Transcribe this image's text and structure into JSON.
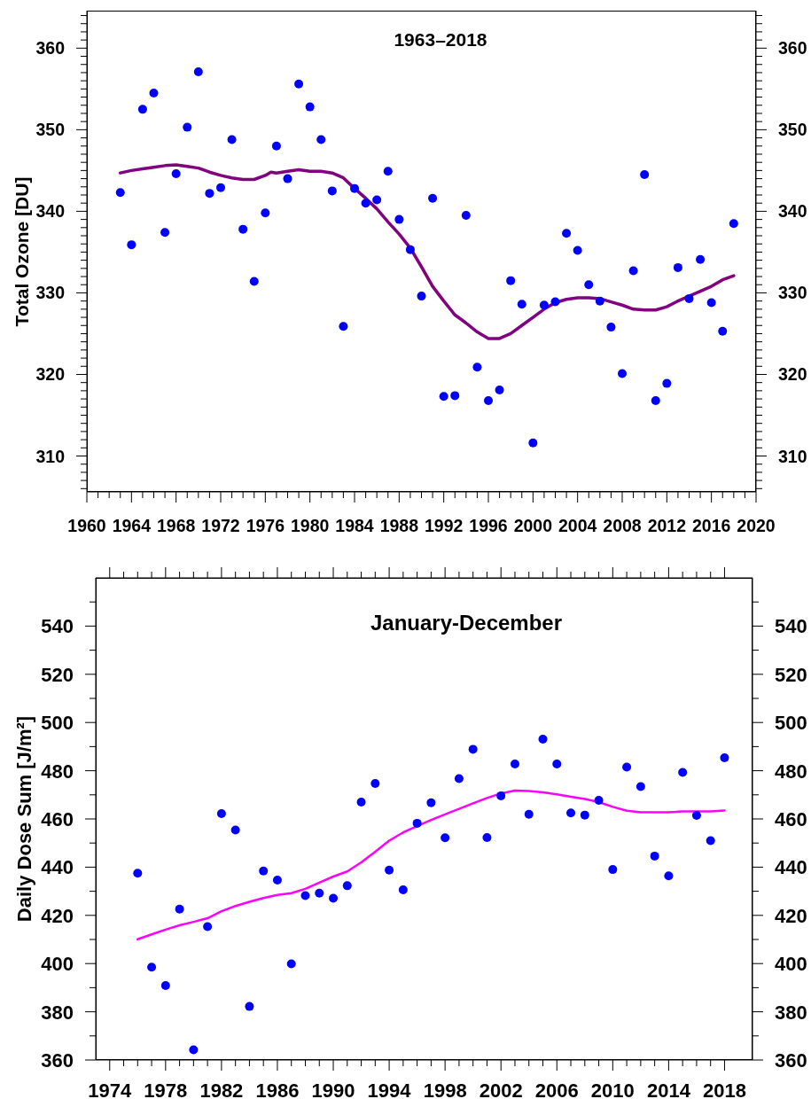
{
  "chart_data": [
    {
      "type": "scatter",
      "title": "1963–2018",
      "ylabel": "Total Ozone [DU]",
      "xlim": [
        1960,
        2020
      ],
      "xticks": [
        1960,
        {
          "value": 1961,
          "label": null
        },
        {
          "value": 1962,
          "label": null
        },
        {
          "value": 1963,
          "label": null
        },
        1964,
        {
          "value": 1965,
          "label": null
        },
        {
          "value": 1966,
          "label": null
        },
        {
          "value": 1967,
          "label": null
        },
        1968,
        {
          "value": 1969,
          "label": null
        },
        {
          "value": 1970,
          "label": null
        },
        {
          "value": 1971,
          "label": null
        },
        1972,
        {
          "value": 1973,
          "label": null
        },
        {
          "value": 1974,
          "label": null
        },
        {
          "value": 1975,
          "label": null
        },
        1976,
        {
          "value": 1977,
          "label": null
        },
        {
          "value": 1978,
          "label": null
        },
        {
          "value": 1979,
          "label": null
        },
        1980,
        {
          "value": 1981,
          "label": null
        },
        {
          "value": 1982,
          "label": null
        },
        {
          "value": 1983,
          "label": null
        },
        1984,
        {
          "value": 1985,
          "label": null
        },
        {
          "value": 1986,
          "label": null
        },
        {
          "value": 1987,
          "label": null
        },
        1988,
        {
          "value": 1989,
          "label": null
        },
        {
          "value": 1990,
          "label": null
        },
        {
          "value": 1991,
          "label": null
        },
        1992,
        {
          "value": 1993,
          "label": null
        },
        {
          "value": 1994,
          "label": null
        },
        {
          "value": 1995,
          "label": null
        },
        1996,
        {
          "value": 1997,
          "label": null
        },
        {
          "value": 1998,
          "label": null
        },
        {
          "value": 1999,
          "label": null
        },
        2000,
        {
          "value": 2001,
          "label": null
        },
        {
          "value": 2002,
          "label": null
        },
        {
          "value": 2003,
          "label": null
        },
        2004,
        {
          "value": 2005,
          "label": null
        },
        {
          "value": 2006,
          "label": null
        },
        {
          "value": 2007,
          "label": null
        },
        2008,
        {
          "value": 2009,
          "label": null
        },
        {
          "value": 2010,
          "label": null
        },
        {
          "value": 2011,
          "label": null
        },
        2012,
        {
          "value": 2013,
          "label": null
        },
        {
          "value": 2014,
          "label": null
        },
        {
          "value": 2015,
          "label": null
        },
        2016,
        {
          "value": 2017,
          "label": null
        },
        {
          "value": 2018,
          "label": null
        },
        {
          "value": 2019,
          "label": null
        },
        2020
      ],
      "ylim": [
        305.6,
        364.6
      ],
      "yticks": [
        {
          "value": 306,
          "label": null
        },
        {
          "value": 307,
          "label": null
        },
        {
          "value": 308,
          "label": null
        },
        {
          "value": 309,
          "label": null
        },
        310,
        {
          "value": 311,
          "label": null
        },
        {
          "value": 312,
          "label": null
        },
        {
          "value": 313,
          "label": null
        },
        {
          "value": 314,
          "label": null
        },
        {
          "value": 315,
          "label": null
        },
        {
          "value": 316,
          "label": null
        },
        {
          "value": 317,
          "label": null
        },
        {
          "value": 318,
          "label": null
        },
        {
          "value": 319,
          "label": null
        },
        320,
        {
          "value": 321,
          "label": null
        },
        {
          "value": 322,
          "label": null
        },
        {
          "value": 323,
          "label": null
        },
        {
          "value": 324,
          "label": null
        },
        {
          "value": 325,
          "label": null
        },
        {
          "value": 326,
          "label": null
        },
        {
          "value": 327,
          "label": null
        },
        {
          "value": 328,
          "label": null
        },
        {
          "value": 329,
          "label": null
        },
        330,
        {
          "value": 331,
          "label": null
        },
        {
          "value": 332,
          "label": null
        },
        {
          "value": 333,
          "label": null
        },
        {
          "value": 334,
          "label": null
        },
        {
          "value": 335,
          "label": null
        },
        {
          "value": 336,
          "label": null
        },
        {
          "value": 337,
          "label": null
        },
        {
          "value": 338,
          "label": null
        },
        {
          "value": 339,
          "label": null
        },
        340,
        {
          "value": 341,
          "label": null
        },
        {
          "value": 342,
          "label": null
        },
        {
          "value": 343,
          "label": null
        },
        {
          "value": 344,
          "label": null
        },
        {
          "value": 345,
          "label": null
        },
        {
          "value": 346,
          "label": null
        },
        {
          "value": 347,
          "label": null
        },
        {
          "value": 348,
          "label": null
        },
        {
          "value": 349,
          "label": null
        },
        350,
        {
          "value": 351,
          "label": null
        },
        {
          "value": 352,
          "label": null
        },
        {
          "value": 353,
          "label": null
        },
        {
          "value": 354,
          "label": null
        },
        {
          "value": 355,
          "label": null
        },
        {
          "value": 356,
          "label": null
        },
        {
          "value": 357,
          "label": null
        },
        {
          "value": 358,
          "label": null
        },
        {
          "value": 359,
          "label": null
        },
        360,
        {
          "value": 361,
          "label": null
        },
        {
          "value": 362,
          "label": null
        },
        {
          "value": 363,
          "label": null
        },
        {
          "value": 364,
          "label": null
        }
      ],
      "y2lim": [
        305.6,
        364.6
      ],
      "y2ticks": [
        {
          "value": 306,
          "label": null
        },
        {
          "value": 307,
          "label": null
        },
        {
          "value": 308,
          "label": null
        },
        {
          "value": 309,
          "label": null
        },
        310,
        {
          "value": 311,
          "label": null
        },
        {
          "value": 312,
          "label": null
        },
        {
          "value": 313,
          "label": null
        },
        {
          "value": 314,
          "label": null
        },
        {
          "value": 315,
          "label": null
        },
        {
          "value": 316,
          "label": null
        },
        {
          "value": 317,
          "label": null
        },
        {
          "value": 318,
          "label": null
        },
        {
          "value": 319,
          "label": null
        },
        320,
        {
          "value": 321,
          "label": null
        },
        {
          "value": 322,
          "label": null
        },
        {
          "value": 323,
          "label": null
        },
        {
          "value": 324,
          "label": null
        },
        {
          "value": 325,
          "label": null
        },
        {
          "value": 326,
          "label": null
        },
        {
          "value": 327,
          "label": null
        },
        {
          "value": 328,
          "label": null
        },
        {
          "value": 329,
          "label": null
        },
        330,
        {
          "value": 331,
          "label": null
        },
        {
          "value": 332,
          "label": null
        },
        {
          "value": 333,
          "label": null
        },
        {
          "value": 334,
          "label": null
        },
        {
          "value": 335,
          "label": null
        },
        {
          "value": 336,
          "label": null
        },
        {
          "value": 337,
          "label": null
        },
        {
          "value": 338,
          "label": null
        },
        {
          "value": 339,
          "label": null
        },
        340,
        {
          "value": 341,
          "label": null
        },
        {
          "value": 342,
          "label": null
        },
        {
          "value": 343,
          "label": null
        },
        {
          "value": 344,
          "label": null
        },
        {
          "value": 345,
          "label": null
        },
        {
          "value": 346,
          "label": null
        },
        {
          "value": 347,
          "label": null
        },
        {
          "value": 348,
          "label": null
        },
        {
          "value": 349,
          "label": null
        },
        350,
        {
          "value": 351,
          "label": null
        },
        {
          "value": 352,
          "label": null
        },
        {
          "value": 353,
          "label": null
        },
        {
          "value": 354,
          "label": null
        },
        {
          "value": 355,
          "label": null
        },
        {
          "value": 356,
          "label": null
        },
        {
          "value": 357,
          "label": null
        },
        {
          "value": 358,
          "label": null
        },
        {
          "value": 359,
          "label": null
        },
        360,
        {
          "value": 361,
          "label": null
        },
        {
          "value": 362,
          "label": null
        },
        {
          "value": 363,
          "label": null
        },
        {
          "value": 364,
          "label": null
        }
      ],
      "series": [
        {
          "type": "scatter",
          "color": "#0000ff",
          "marker": "circle",
          "x": [
            1963,
            1964,
            1965,
            1966,
            1967,
            1968,
            1969,
            1970,
            1971,
            1972,
            1973,
            1974,
            1975,
            1976,
            1977,
            1978,
            1979,
            1980,
            1981,
            1982,
            1983,
            1984,
            1985,
            1986,
            1987,
            1988,
            1989,
            1990,
            1991,
            1992,
            1993,
            1994,
            1995,
            1996,
            1997,
            1998,
            1999,
            2000,
            2001,
            2002,
            2003,
            2004,
            2005,
            2006,
            2007,
            2008,
            2009,
            2010,
            2011,
            2012,
            2013,
            2014,
            2015,
            2016,
            2017,
            2018
          ],
          "values": [
            342.3,
            335.9,
            352.5,
            354.5,
            337.4,
            344.6,
            350.3,
            357.1,
            342.2,
            342.9,
            348.8,
            337.8,
            331.4,
            339.8,
            348.0,
            344.0,
            355.6,
            352.8,
            348.8,
            342.5,
            325.9,
            342.8,
            341.0,
            341.4,
            344.9,
            339.0,
            335.3,
            329.6,
            341.6,
            317.3,
            317.4,
            339.5,
            320.9,
            316.8,
            318.1,
            331.5,
            328.6,
            311.6,
            328.5,
            328.9,
            337.3,
            335.2,
            331.0,
            329.0,
            325.8,
            320.1,
            332.7,
            344.5,
            316.8,
            318.9,
            333.1,
            329.3,
            334.1,
            328.8,
            325.3,
            338.5
          ]
        },
        {
          "type": "line",
          "color": "#800080",
          "marker": "none",
          "x": [
            1963,
            1964,
            1965,
            1966,
            1967,
            1968,
            1969,
            1970,
            1971,
            1972,
            1973,
            1974,
            1975,
            1976,
            1976.5,
            1977,
            1978,
            1979,
            1980,
            1981,
            1982,
            1983,
            1984,
            1985,
            1986,
            1987,
            1988,
            1989,
            1990,
            1991,
            1992,
            1993,
            1994,
            1995,
            1996,
            1997,
            1998,
            1999,
            2000,
            2001,
            2002,
            2003,
            2004,
            2005,
            2006,
            2007,
            2008,
            2009,
            2010,
            2011,
            2012,
            2013,
            2014,
            2015,
            2016,
            2017,
            2018
          ],
          "values": [
            344.7,
            345.0,
            345.2,
            345.4,
            345.6,
            345.7,
            345.5,
            345.3,
            344.8,
            344.4,
            344.1,
            343.9,
            343.9,
            344.4,
            344.8,
            344.7,
            344.9,
            345.1,
            344.9,
            344.9,
            344.7,
            344.1,
            342.8,
            341.6,
            340.3,
            338.7,
            337.2,
            335.5,
            333.2,
            330.8,
            329.0,
            327.3,
            326.3,
            325.2,
            324.4,
            324.4,
            325.0,
            326.0,
            327.0,
            328.0,
            328.8,
            329.2,
            329.4,
            329.4,
            329.3,
            328.9,
            328.5,
            328.0,
            327.9,
            327.9,
            328.3,
            329.0,
            329.6,
            330.2,
            330.8,
            331.6,
            332.1
          ]
        }
      ]
    },
    {
      "type": "scatter",
      "title": "January-December",
      "ylabel": "Daily Dose Sum [J/m²]",
      "xlim": [
        1973,
        2020
      ],
      "xticks": [
        1974,
        {
          "value": 1975,
          "label": null
        },
        {
          "value": 1976,
          "label": null
        },
        {
          "value": 1977,
          "label": null
        },
        1978,
        {
          "value": 1979,
          "label": null
        },
        {
          "value": 1980,
          "label": null
        },
        {
          "value": 1981,
          "label": null
        },
        1982,
        {
          "value": 1983,
          "label": null
        },
        {
          "value": 1984,
          "label": null
        },
        {
          "value": 1985,
          "label": null
        },
        1986,
        {
          "value": 1987,
          "label": null
        },
        {
          "value": 1988,
          "label": null
        },
        {
          "value": 1989,
          "label": null
        },
        1990,
        {
          "value": 1991,
          "label": null
        },
        {
          "value": 1992,
          "label": null
        },
        {
          "value": 1993,
          "label": null
        },
        1994,
        {
          "value": 1995,
          "label": null
        },
        {
          "value": 1996,
          "label": null
        },
        {
          "value": 1997,
          "label": null
        },
        1998,
        {
          "value": 1999,
          "label": null
        },
        {
          "value": 2000,
          "label": null
        },
        {
          "value": 2001,
          "label": null
        },
        2002,
        {
          "value": 2003,
          "label": null
        },
        {
          "value": 2004,
          "label": null
        },
        {
          "value": 2005,
          "label": null
        },
        2006,
        {
          "value": 2007,
          "label": null
        },
        {
          "value": 2008,
          "label": null
        },
        {
          "value": 2009,
          "label": null
        },
        2010,
        {
          "value": 2011,
          "label": null
        },
        {
          "value": 2012,
          "label": null
        },
        {
          "value": 2013,
          "label": null
        },
        2014,
        {
          "value": 2015,
          "label": null
        },
        {
          "value": 2016,
          "label": null
        },
        {
          "value": 2017,
          "label": null
        },
        2018
      ],
      "ylim": [
        360,
        560
      ],
      "yticks": [
        360,
        {
          "value": 370,
          "label": null
        },
        380,
        {
          "value": 390,
          "label": null
        },
        400,
        {
          "value": 410,
          "label": null
        },
        420,
        {
          "value": 430,
          "label": null
        },
        440,
        {
          "value": 450,
          "label": null
        },
        460,
        {
          "value": 470,
          "label": null
        },
        480,
        {
          "value": 490,
          "label": null
        },
        500,
        {
          "value": 510,
          "label": null
        },
        520,
        {
          "value": 530,
          "label": null
        },
        540,
        {
          "value": 550,
          "label": null
        }
      ],
      "y2lim": [
        360,
        560
      ],
      "y2ticks": [
        360,
        {
          "value": 370,
          "label": null
        },
        380,
        {
          "value": 390,
          "label": null
        },
        400,
        {
          "value": 410,
          "label": null
        },
        420,
        {
          "value": 430,
          "label": null
        },
        440,
        {
          "value": 450,
          "label": null
        },
        460,
        {
          "value": 470,
          "label": null
        },
        480,
        {
          "value": 490,
          "label": null
        },
        500,
        {
          "value": 510,
          "label": null
        },
        520,
        {
          "value": 530,
          "label": null
        },
        540,
        {
          "value": 550,
          "label": null
        }
      ],
      "series": [
        {
          "type": "scatter",
          "color": "#0000ff",
          "marker": "circle",
          "x": [
            1976,
            1977,
            1978,
            1979,
            1980,
            1981,
            1982,
            1983,
            1984,
            1985,
            1986,
            1987,
            1988,
            1989,
            1990,
            1991,
            1992,
            1993,
            1994,
            1995,
            1996,
            1997,
            1998,
            1999,
            2000,
            2001,
            2002,
            2003,
            2004,
            2005,
            2006,
            2007,
            2008,
            2009,
            2010,
            2011,
            2012,
            2013,
            2014,
            2015,
            2016,
            2017,
            2018
          ],
          "values": [
            437.5,
            398.5,
            390.9,
            422.6,
            364.2,
            415.3,
            462.2,
            455.4,
            382.2,
            438.4,
            434.6,
            399.9,
            428.2,
            429.2,
            427.1,
            432.3,
            467.0,
            474.7,
            438.8,
            430.6,
            458.2,
            466.7,
            452.2,
            476.7,
            488.9,
            452.3,
            469.6,
            482.8,
            461.9,
            493.1,
            482.8,
            462.5,
            461.6,
            467.7,
            439.0,
            481.5,
            473.4,
            444.6,
            436.4,
            479.3,
            461.5,
            451.0,
            485.4
          ]
        },
        {
          "type": "line",
          "color": "#ff00ff",
          "marker": "none",
          "x": [
            1976,
            1977,
            1978,
            1979,
            1980,
            1981,
            1982,
            1983,
            1984,
            1985,
            1986,
            1987,
            1988,
            1989,
            1990,
            1991,
            1992,
            1993,
            1994,
            1995,
            1996,
            1997,
            1998,
            1999,
            2000,
            2001,
            2002,
            2003,
            2004,
            2005,
            2006,
            2007,
            2008,
            2009,
            2010,
            2011,
            2012,
            2013,
            2014,
            2015,
            2016,
            2017,
            2018
          ],
          "values": [
            410.1,
            412.1,
            414.1,
            415.9,
            417.3,
            418.8,
            421.7,
            423.9,
            425.6,
            427.2,
            428.5,
            429.2,
            431.0,
            433.6,
            436.1,
            438.2,
            442.0,
            446.4,
            451.0,
            454.4,
            457.0,
            459.6,
            461.9,
            464.2,
            466.5,
            468.7,
            470.6,
            471.8,
            471.6,
            471.0,
            470.2,
            469.2,
            468.3,
            467.0,
            465.0,
            463.4,
            462.8,
            462.8,
            462.8,
            463.1,
            463.1,
            463.1,
            463.5
          ]
        }
      ]
    }
  ]
}
